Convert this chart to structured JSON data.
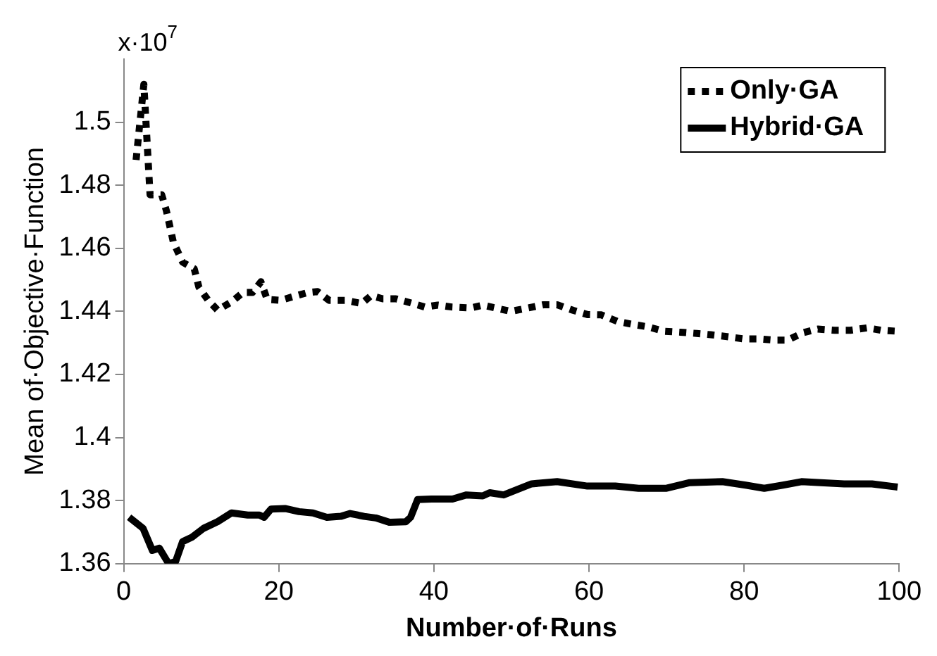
{
  "chart_data": {
    "type": "line",
    "xlabel": "Number·of·Runs",
    "ylabel": "Mean of·Objective·Function",
    "annotations": [
      "x·10$^{7}$"
    ],
    "xlim": [
      0,
      100
    ],
    "xticks": [
      0,
      20,
      40,
      60,
      80,
      100
    ],
    "ylim": [
      1.36,
      1.52
    ],
    "yticks": [
      1.36,
      1.38,
      1.4,
      1.42,
      1.44,
      1.46,
      1.48,
      1.5
    ],
    "grid": false,
    "legend": "top right",
    "series": [
      {
        "name": "Only·GA",
        "color": "#000000",
        "line_style": "dotted",
        "x": [
          1.6,
          2.6,
          3.4,
          4.9,
          5.5,
          6.4,
          7.6,
          9.1,
          9.7,
          10.9,
          12.1,
          13.9,
          15.4,
          16.6,
          17.7,
          18.5,
          20.2,
          22.3,
          23.8,
          25,
          26.5,
          28.6,
          30.7,
          31.9,
          33.4,
          35.1,
          37,
          38.8,
          40.5,
          42.3,
          44.8,
          46.3,
          48.1,
          49.9,
          52,
          54.1,
          55.9,
          58,
          59.8,
          61.6,
          63.7,
          65.8,
          67.6,
          69.7,
          71.8,
          73.9,
          75.7,
          77.8,
          79.9,
          81.7,
          83.8,
          85.6,
          87.7,
          89.5,
          91.7,
          93.7,
          95.9,
          97.7,
          99.8
        ],
        "values": [
          1.488,
          1.512,
          1.477,
          1.477,
          1.472,
          1.462,
          1.4556,
          1.4535,
          1.4477,
          1.4435,
          1.4404,
          1.443,
          1.446,
          1.446,
          1.4494,
          1.4438,
          1.4435,
          1.445,
          1.446,
          1.4463,
          1.4435,
          1.4435,
          1.4425,
          1.445,
          1.444,
          1.444,
          1.4427,
          1.4414,
          1.442,
          1.4414,
          1.4411,
          1.442,
          1.441,
          1.44,
          1.441,
          1.4421,
          1.4421,
          1.4403,
          1.439,
          1.4389,
          1.4368,
          1.4358,
          1.4351,
          1.4337,
          1.4334,
          1.433,
          1.4326,
          1.432,
          1.4313,
          1.4313,
          1.4309,
          1.4309,
          1.4333,
          1.4344,
          1.434,
          1.434,
          1.4348,
          1.434,
          1.4337
        ]
      },
      {
        "name": "Hybrid·GA",
        "color": "#000000",
        "line_style": "solid",
        "x": [
          0.7,
          2.5,
          3.7,
          4.6,
          5.8,
          6.7,
          7.6,
          8.8,
          10.3,
          12.1,
          13.9,
          16,
          17.5,
          18.1,
          19,
          20.8,
          22.6,
          24.4,
          26.2,
          28,
          29.2,
          31,
          32.5,
          34.3,
          36.4,
          37,
          37.9,
          39.7,
          42.4,
          44.2,
          46.3,
          47.2,
          49,
          52.6,
          55.9,
          59.8,
          63.4,
          66.4,
          70,
          73,
          77.2,
          80.2,
          82.6,
          85,
          87.4,
          89.9,
          92.9,
          96.5,
          99.8
        ],
        "values": [
          1.3747,
          1.3712,
          1.3642,
          1.3649,
          1.36,
          1.3607,
          1.367,
          1.3684,
          1.3712,
          1.3733,
          1.3761,
          1.3754,
          1.3754,
          1.3747,
          1.3773,
          1.3775,
          1.3765,
          1.3761,
          1.3747,
          1.375,
          1.3759,
          1.375,
          1.3745,
          1.3731,
          1.3733,
          1.3747,
          1.3803,
          1.3805,
          1.3805,
          1.3818,
          1.3815,
          1.3825,
          1.3818,
          1.3853,
          1.386,
          1.3846,
          1.3846,
          1.3839,
          1.3839,
          1.3857,
          1.386,
          1.3849,
          1.3839,
          1.3849,
          1.386,
          1.3857,
          1.3853,
          1.3853,
          1.3843
        ]
      }
    ]
  }
}
